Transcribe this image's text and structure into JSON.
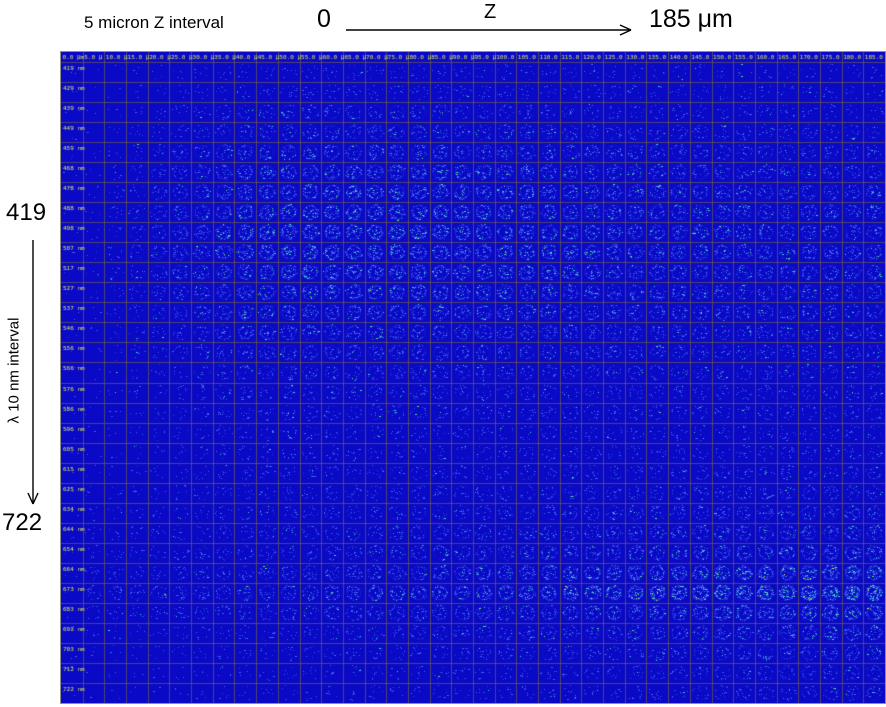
{
  "annotations": {
    "z_interval_label": "5 micron Z interval",
    "z_start": "0",
    "z_axis_label": "Z",
    "z_end": "185 μm",
    "lambda_start": "419",
    "lambda_axis_label": "λ 10 nm interval",
    "lambda_end": "722"
  },
  "montage": {
    "header_labels": [
      "0.0 μm",
      "5.0 μ",
      "10.0 μ",
      "15.0 μ",
      "20.0 μ",
      "25.0 μ",
      "30.0 μ",
      "35.0 μ",
      "40.0 μ",
      "45.0 μ",
      "50.0 μ",
      "55.0 μ",
      "60.0 μ",
      "65.0 μ",
      "70.0 μ",
      "75.0 μ",
      "80.0 μ",
      "85.0 μ",
      "90.0 μ",
      "95.0 μ",
      "100.0",
      "105.0",
      "110.0",
      "115.0",
      "120.0",
      "125.0",
      "130.0",
      "135.0",
      "140.0",
      "145.0",
      "150.0",
      "155.0",
      "160.0",
      "165.0",
      "170.0",
      "175.0",
      "180.0",
      "185.0"
    ],
    "row_labels": [
      "419 nm",
      "429 nm",
      "439 nm",
      "449 nm",
      "459 nm",
      "468 nm",
      "478 nm",
      "488 nm",
      "498 nm",
      "507 nm",
      "517 nm",
      "527 nm",
      "537 nm",
      "546 nm",
      "556 nm",
      "566 nm",
      "576 nm",
      "586 nm",
      "596 nm",
      "605 nm",
      "615 nm",
      "625 nm",
      "634 nm",
      "644 nm",
      "654 nm",
      "664 nm",
      "673 nm",
      "683 nm",
      "693 nm",
      "703 nm",
      "712 nm",
      "722 nm"
    ],
    "colors": {
      "background": "#0a09c6",
      "grid": "#8a7426",
      "label_text": "#d6e264",
      "speckle_dim": "#2d43dd",
      "speckle_mid": "#4263f2",
      "speckle_cyan": "#3fd0cf",
      "speckle_green": "#52e06e",
      "speckle_yellow": "#c8e84e"
    }
  }
}
